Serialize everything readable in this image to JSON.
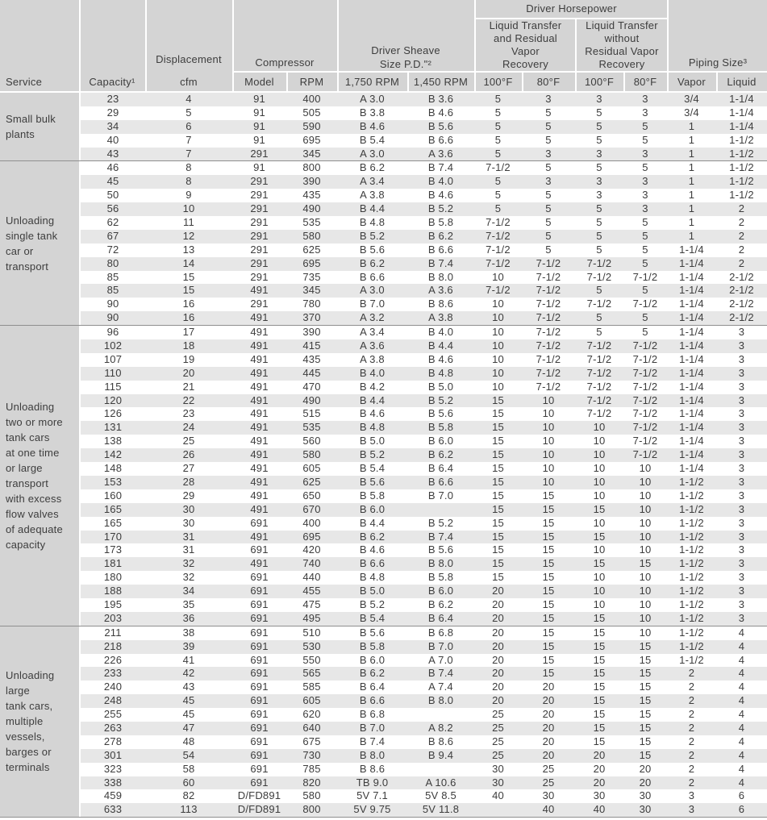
{
  "header": {
    "driver_horsepower": "Driver Horsepower",
    "group_with_recovery": "Liquid Transfer\nand Residual\nVapor\nRecovery",
    "group_without_recovery": "Liquid Transfer\nwithout\nResidual Vapor\nRecovery",
    "sheave_group": "Driver Sheave\nSize P.D.\"²",
    "compressor_group": "Compressor",
    "displacement_word": "Displacement",
    "piping_group": "Piping Size³",
    "service": "Service",
    "capacity": "Capacity¹",
    "cfm": "cfm",
    "model": "Model",
    "rpm": "RPM",
    "rpm_1750": "1,750 RPM",
    "rpm_1450": "1,450 RPM",
    "temp_100_with": "100°F",
    "temp_80_with": "80°F",
    "temp_100_without": "100°F",
    "temp_80_without": "80°F",
    "vapor": "Vapor",
    "liquid": "Liquid"
  },
  "column_keys": [
    "capacity",
    "displacement-cfm",
    "model",
    "rpm",
    "sheave-1750-rpm",
    "sheave-1450-rpm",
    "hp-with-recovery-100f",
    "hp-with-recovery-80f",
    "hp-without-recovery-100f",
    "hp-without-recovery-80f",
    "piping-vapor",
    "piping-liquid"
  ],
  "sections": [
    {
      "service": "Small bulk\nplants",
      "rows": [
        [
          "23",
          "4",
          "91",
          "400",
          "A 3.0",
          "B 3.6",
          "5",
          "3",
          "3",
          "3",
          "3/4",
          "1-1/4"
        ],
        [
          "29",
          "5",
          "91",
          "505",
          "B 3.8",
          "B 4.6",
          "5",
          "5",
          "5",
          "3",
          "3/4",
          "1-1/4"
        ],
        [
          "34",
          "6",
          "91",
          "590",
          "B 4.6",
          "B 5.6",
          "5",
          "5",
          "5",
          "5",
          "1",
          "1-1/4"
        ],
        [
          "40",
          "7",
          "91",
          "695",
          "B 5.4",
          "B 6.6",
          "5",
          "5",
          "5",
          "5",
          "1",
          "1-1/2"
        ],
        [
          "43",
          "7",
          "291",
          "345",
          "A 3.0",
          "A 3.6",
          "5",
          "3",
          "3",
          "3",
          "1",
          "1-1/2"
        ]
      ]
    },
    {
      "service": "Unloading\nsingle tank\ncar or\ntransport",
      "rows": [
        [
          "46",
          "8",
          "91",
          "800",
          "B 6.2",
          "B 7.4",
          "7-1/2",
          "5",
          "5",
          "5",
          "1",
          "1-1/2"
        ],
        [
          "45",
          "8",
          "291",
          "390",
          "A 3.4",
          "B 4.0",
          "5",
          "3",
          "3",
          "3",
          "1",
          "1-1/2"
        ],
        [
          "50",
          "9",
          "291",
          "435",
          "A 3.8",
          "B 4.6",
          "5",
          "5",
          "3",
          "3",
          "1",
          "1-1/2"
        ],
        [
          "56",
          "10",
          "291",
          "490",
          "B 4.4",
          "B 5.2",
          "5",
          "5",
          "5",
          "3",
          "1",
          "2"
        ],
        [
          "62",
          "11",
          "291",
          "535",
          "B 4.8",
          "B 5.8",
          "7-1/2",
          "5",
          "5",
          "5",
          "1",
          "2"
        ],
        [
          "67",
          "12",
          "291",
          "580",
          "B 5.2",
          "B 6.2",
          "7-1/2",
          "5",
          "5",
          "5",
          "1",
          "2"
        ],
        [
          "72",
          "13",
          "291",
          "625",
          "B 5.6",
          "B 6.6",
          "7-1/2",
          "5",
          "5",
          "5",
          "1-1/4",
          "2"
        ],
        [
          "80",
          "14",
          "291",
          "695",
          "B 6.2",
          "B 7.4",
          "7-1/2",
          "7-1/2",
          "7-1/2",
          "5",
          "1-1/4",
          "2"
        ],
        [
          "85",
          "15",
          "291",
          "735",
          "B 6.6",
          "B 8.0",
          "10",
          "7-1/2",
          "7-1/2",
          "7-1/2",
          "1-1/4",
          "2-1/2"
        ],
        [
          "85",
          "15",
          "491",
          "345",
          "A 3.0",
          "A 3.6",
          "7-1/2",
          "7-1/2",
          "5",
          "5",
          "1-1/4",
          "2-1/2"
        ],
        [
          "90",
          "16",
          "291",
          "780",
          "B 7.0",
          "B 8.6",
          "10",
          "7-1/2",
          "7-1/2",
          "7-1/2",
          "1-1/4",
          "2-1/2"
        ],
        [
          "90",
          "16",
          "491",
          "370",
          "A 3.2",
          "A 3.8",
          "10",
          "7-1/2",
          "5",
          "5",
          "1-1/4",
          "2-1/2"
        ]
      ]
    },
    {
      "service": "Unloading\ntwo or more\ntank cars\nat one time\nor large\ntransport\nwith excess\nflow valves\nof adequate\ncapacity",
      "rows": [
        [
          "96",
          "17",
          "491",
          "390",
          "A 3.4",
          "B 4.0",
          "10",
          "7-1/2",
          "5",
          "5",
          "1-1/4",
          "3"
        ],
        [
          "102",
          "18",
          "491",
          "415",
          "A 3.6",
          "B 4.4",
          "10",
          "7-1/2",
          "7-1/2",
          "7-1/2",
          "1-1/4",
          "3"
        ],
        [
          "107",
          "19",
          "491",
          "435",
          "A 3.8",
          "B 4.6",
          "10",
          "7-1/2",
          "7-1/2",
          "7-1/2",
          "1-1/4",
          "3"
        ],
        [
          "110",
          "20",
          "491",
          "445",
          "B 4.0",
          "B 4.8",
          "10",
          "7-1/2",
          "7-1/2",
          "7-1/2",
          "1-1/4",
          "3"
        ],
        [
          "115",
          "21",
          "491",
          "470",
          "B 4.2",
          "B 5.0",
          "10",
          "7-1/2",
          "7-1/2",
          "7-1/2",
          "1-1/4",
          "3"
        ],
        [
          "120",
          "22",
          "491",
          "490",
          "B 4.4",
          "B 5.2",
          "15",
          "10",
          "7-1/2",
          "7-1/2",
          "1-1/4",
          "3"
        ],
        [
          "126",
          "23",
          "491",
          "515",
          "B 4.6",
          "B 5.6",
          "15",
          "10",
          "7-1/2",
          "7-1/2",
          "1-1/4",
          "3"
        ],
        [
          "131",
          "24",
          "491",
          "535",
          "B 4.8",
          "B 5.8",
          "15",
          "10",
          "10",
          "7-1/2",
          "1-1/4",
          "3"
        ],
        [
          "138",
          "25",
          "491",
          "560",
          "B 5.0",
          "B 6.0",
          "15",
          "10",
          "10",
          "7-1/2",
          "1-1/4",
          "3"
        ],
        [
          "142",
          "26",
          "491",
          "580",
          "B 5.2",
          "B 6.2",
          "15",
          "10",
          "10",
          "7-1/2",
          "1-1/4",
          "3"
        ],
        [
          "148",
          "27",
          "491",
          "605",
          "B 5.4",
          "B 6.4",
          "15",
          "10",
          "10",
          "10",
          "1-1/4",
          "3"
        ],
        [
          "153",
          "28",
          "491",
          "625",
          "B 5.6",
          "B 6.6",
          "15",
          "10",
          "10",
          "10",
          "1-1/2",
          "3"
        ],
        [
          "160",
          "29",
          "491",
          "650",
          "B 5.8",
          "B 7.0",
          "15",
          "15",
          "10",
          "10",
          "1-1/2",
          "3"
        ],
        [
          "165",
          "30",
          "491",
          "670",
          "B 6.0",
          "",
          "15",
          "15",
          "15",
          "10",
          "1-1/2",
          "3"
        ],
        [
          "165",
          "30",
          "691",
          "400",
          "B 4.4",
          "B 5.2",
          "15",
          "15",
          "10",
          "10",
          "1-1/2",
          "3"
        ],
        [
          "170",
          "31",
          "491",
          "695",
          "B 6.2",
          "B 7.4",
          "15",
          "15",
          "15",
          "10",
          "1-1/2",
          "3"
        ],
        [
          "173",
          "31",
          "691",
          "420",
          "B 4.6",
          "B 5.6",
          "15",
          "15",
          "10",
          "10",
          "1-1/2",
          "3"
        ],
        [
          "181",
          "32",
          "491",
          "740",
          "B 6.6",
          "B 8.0",
          "15",
          "15",
          "15",
          "15",
          "1-1/2",
          "3"
        ],
        [
          "180",
          "32",
          "691",
          "440",
          "B 4.8",
          "B 5.8",
          "15",
          "15",
          "10",
          "10",
          "1-1/2",
          "3"
        ],
        [
          "188",
          "34",
          "691",
          "455",
          "B 5.0",
          "B 6.0",
          "20",
          "15",
          "10",
          "10",
          "1-1/2",
          "3"
        ],
        [
          "195",
          "35",
          "691",
          "475",
          "B 5.2",
          "B 6.2",
          "20",
          "15",
          "10",
          "10",
          "1-1/2",
          "3"
        ],
        [
          "203",
          "36",
          "691",
          "495",
          "B 5.4",
          "B 6.4",
          "20",
          "15",
          "15",
          "10",
          "1-1/2",
          "3"
        ]
      ]
    },
    {
      "service": "Unloading\nlarge\ntank cars,\nmultiple\nvessels,\nbarges or\nterminals",
      "rows": [
        [
          "211",
          "38",
          "691",
          "510",
          "B 5.6",
          "B 6.8",
          "20",
          "15",
          "15",
          "10",
          "1-1/2",
          "4"
        ],
        [
          "218",
          "39",
          "691",
          "530",
          "B 5.8",
          "B 7.0",
          "20",
          "15",
          "15",
          "15",
          "1-1/2",
          "4"
        ],
        [
          "226",
          "41",
          "691",
          "550",
          "B 6.0",
          "A 7.0",
          "20",
          "15",
          "15",
          "15",
          "1-1/2",
          "4"
        ],
        [
          "233",
          "42",
          "691",
          "565",
          "B 6.2",
          "B 7.4",
          "20",
          "15",
          "15",
          "15",
          "2",
          "4"
        ],
        [
          "240",
          "43",
          "691",
          "585",
          "B 6.4",
          "A 7.4",
          "20",
          "20",
          "15",
          "15",
          "2",
          "4"
        ],
        [
          "248",
          "45",
          "691",
          "605",
          "B 6.6",
          "B 8.0",
          "20",
          "20",
          "15",
          "15",
          "2",
          "4"
        ],
        [
          "255",
          "45",
          "691",
          "620",
          "B 6.8",
          "",
          "25",
          "20",
          "15",
          "15",
          "2",
          "4"
        ],
        [
          "263",
          "47",
          "691",
          "640",
          "B 7.0",
          "A 8.2",
          "25",
          "20",
          "15",
          "15",
          "2",
          "4"
        ],
        [
          "278",
          "48",
          "691",
          "675",
          "B 7.4",
          "B 8.6",
          "25",
          "20",
          "15",
          "15",
          "2",
          "4"
        ],
        [
          "301",
          "54",
          "691",
          "730",
          "B 8.0",
          "B 9.4",
          "25",
          "20",
          "20",
          "15",
          "2",
          "4"
        ],
        [
          "323",
          "58",
          "691",
          "785",
          "B 8.6",
          "",
          "30",
          "25",
          "20",
          "20",
          "2",
          "4"
        ],
        [
          "338",
          "60",
          "691",
          "820",
          "TB 9.0",
          "A 10.6",
          "30",
          "25",
          "20",
          "20",
          "2",
          "4"
        ],
        [
          "459",
          "82",
          "D/FD891",
          "580",
          "5V 7.1",
          "5V 8.5",
          "40",
          "30",
          "30",
          "30",
          "3",
          "6"
        ],
        [
          "633",
          "113",
          "D/FD891",
          "800",
          "5V 9.75",
          "5V 11.8",
          "",
          "40",
          "40",
          "30",
          "3",
          "6"
        ]
      ]
    }
  ],
  "colors": {
    "header_bg": "#d4d4d4",
    "stripe_bg": "#e7e7e7",
    "text": "#3d3d3d",
    "section_divider": "#8f8f8f"
  }
}
